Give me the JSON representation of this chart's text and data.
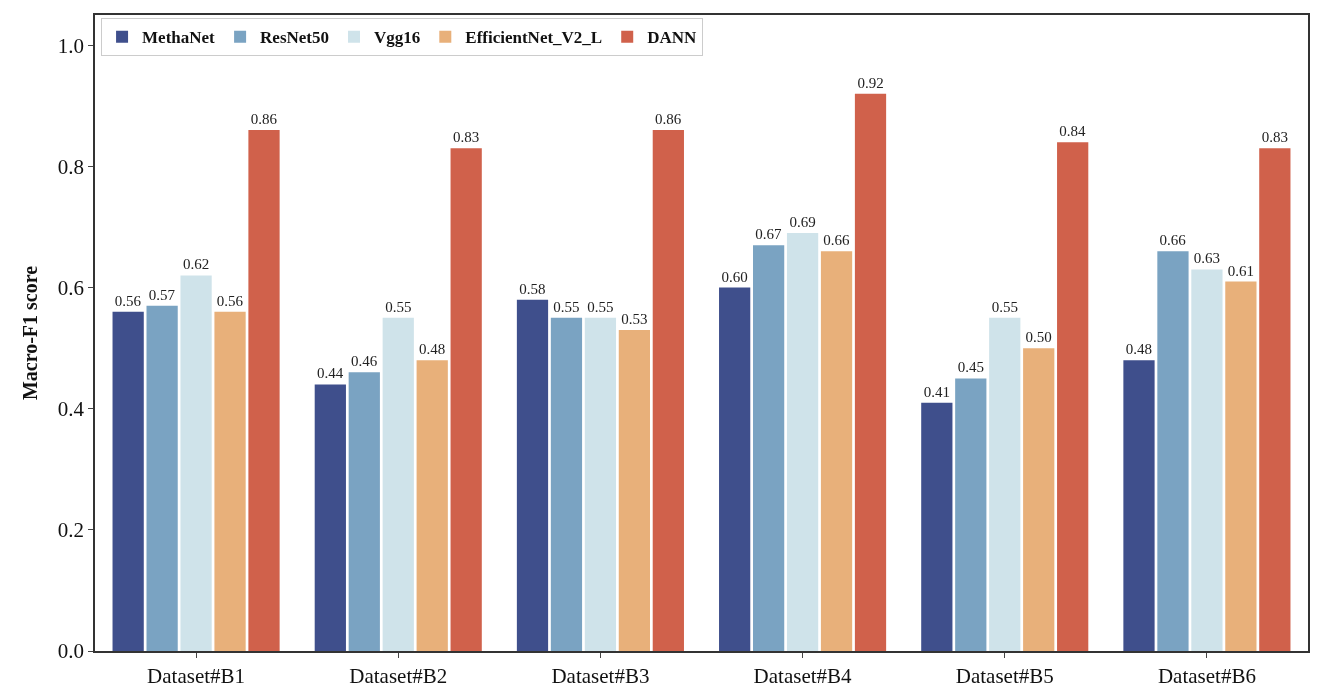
{
  "chart_data": {
    "type": "bar",
    "ylabel": "Macro-F1 score",
    "categories": [
      "Dataset#B1",
      "Dataset#B2",
      "Dataset#B3",
      "Dataset#B4",
      "Dataset#B5",
      "Dataset#B6"
    ],
    "series": [
      {
        "name": "MethaNet",
        "color": "#3f4f8c",
        "values": [
          0.56,
          0.44,
          0.58,
          0.6,
          0.41,
          0.48
        ],
        "value_labels": [
          "0.56",
          "0.44",
          "0.58",
          "0.60",
          "0.41",
          "0.48"
        ]
      },
      {
        "name": "ResNet50",
        "color": "#7aa3c2",
        "values": [
          0.57,
          0.46,
          0.55,
          0.67,
          0.45,
          0.66
        ],
        "value_labels": [
          "0.57",
          "0.46",
          "0.55",
          "0.67",
          "0.45",
          "0.66"
        ]
      },
      {
        "name": "Vgg16",
        "color": "#cfe3ea",
        "values": [
          0.62,
          0.55,
          0.55,
          0.69,
          0.55,
          0.63
        ],
        "value_labels": [
          "0.62",
          "0.55",
          "0.55",
          "0.69",
          "0.55",
          "0.63"
        ]
      },
      {
        "name": "EfficientNet_V2_L",
        "color": "#e8b07a",
        "values": [
          0.56,
          0.48,
          0.53,
          0.66,
          0.5,
          0.61
        ],
        "value_labels": [
          "0.56",
          "0.48",
          "0.53",
          "0.66",
          "0.50",
          "0.61"
        ]
      },
      {
        "name": "DANN",
        "color": "#d0614b",
        "values": [
          0.86,
          0.83,
          0.86,
          0.92,
          0.84,
          0.83
        ],
        "value_labels": [
          "0.86",
          "0.83",
          "0.86",
          "0.92",
          "0.84",
          "0.83"
        ]
      }
    ],
    "ylim": [
      0,
      1.05
    ],
    "yticks": [
      {
        "value": 0,
        "label": "0.0"
      },
      {
        "value": 0.2,
        "label": "0.2"
      },
      {
        "value": 0.4,
        "label": "0.4"
      },
      {
        "value": 0.6,
        "label": "0.6"
      },
      {
        "value": 0.8,
        "label": "0.8"
      },
      {
        "value": 1.0,
        "label": "1.0"
      }
    ],
    "legend": "top left"
  }
}
